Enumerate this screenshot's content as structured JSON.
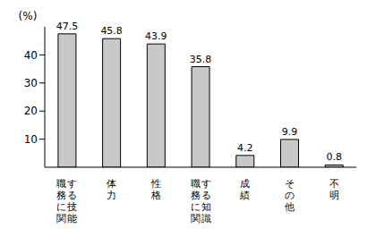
{
  "chart_data": {
    "type": "bar",
    "y_label": "(%)",
    "categories": [
      "職務に関する技能",
      "体力",
      "性格",
      "職務に関する知識",
      "成績",
      "その他",
      "不明"
    ],
    "values": [
      47.5,
      45.8,
      43.9,
      35.8,
      4.2,
      9.9,
      0.8
    ],
    "color": "#c8c8c8",
    "ylim": [
      0,
      50
    ],
    "yticks": [
      10,
      20,
      30,
      40
    ],
    "grid": false,
    "data_labels": true
  }
}
